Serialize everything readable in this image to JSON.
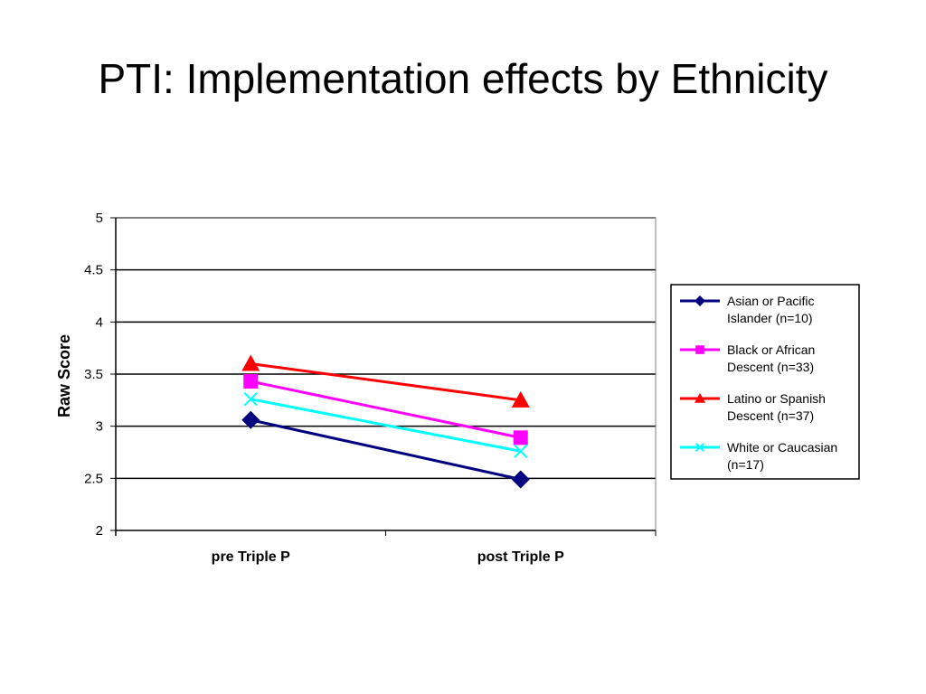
{
  "title": "PTI: Implementation effects by Ethnicity",
  "chart_data": {
    "type": "line",
    "title": "",
    "xlabel": "",
    "ylabel": "Raw Score",
    "categories": [
      "pre Triple P",
      "post Triple P"
    ],
    "ylim": [
      2,
      5
    ],
    "yticks": [
      "5",
      "4.5",
      "4",
      "3.5",
      "3",
      "2.5",
      "2"
    ],
    "ytick_values": [
      5,
      4.5,
      4,
      3.5,
      3,
      2.5,
      2
    ],
    "grid": true,
    "legend_position": "right",
    "series": [
      {
        "name": "Asian or Pacific Islander (n=10)",
        "legend_lines": [
          "Asian or Pacific",
          "Islander (n=10)"
        ],
        "values": [
          3.06,
          2.49
        ],
        "color": "#000080",
        "marker": "diamond"
      },
      {
        "name": "Black or African Descent (n=33)",
        "legend_lines": [
          "Black or African",
          "Descent (n=33)"
        ],
        "values": [
          3.43,
          2.89
        ],
        "color": "#ff00ff",
        "marker": "square"
      },
      {
        "name": "Latino or Spanish Descent (n=37)",
        "legend_lines": [
          "Latino or Spanish",
          "Descent (n=37)"
        ],
        "values": [
          3.6,
          3.25
        ],
        "color": "#ff0000",
        "marker": "triangle"
      },
      {
        "name": "White or Caucasian (n=17)",
        "legend_lines": [
          "White or Caucasian",
          "(n=17)"
        ],
        "values": [
          3.26,
          2.76
        ],
        "color": "#00ffff",
        "marker": "x"
      }
    ]
  }
}
